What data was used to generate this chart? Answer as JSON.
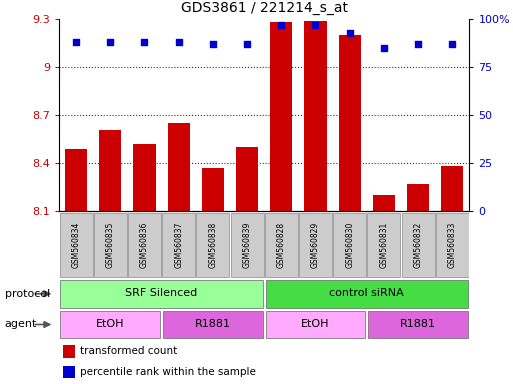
{
  "title": "GDS3861 / 221214_s_at",
  "samples": [
    "GSM560834",
    "GSM560835",
    "GSM560836",
    "GSM560837",
    "GSM560838",
    "GSM560839",
    "GSM560828",
    "GSM560829",
    "GSM560830",
    "GSM560831",
    "GSM560832",
    "GSM560833"
  ],
  "bar_values": [
    8.49,
    8.61,
    8.52,
    8.65,
    8.37,
    8.5,
    9.28,
    9.29,
    9.2,
    8.2,
    8.27,
    8.38
  ],
  "percentile_values": [
    88,
    88,
    88,
    88,
    87,
    87,
    97,
    97,
    93,
    85,
    87,
    87
  ],
  "ymin": 8.1,
  "ymax": 9.3,
  "yticks": [
    8.1,
    8.4,
    8.7,
    9.0,
    9.3
  ],
  "ytick_labels": [
    "8.1",
    "8.4",
    "8.7",
    "9",
    "9.3"
  ],
  "y2min": 0,
  "y2max": 100,
  "y2ticks": [
    0,
    25,
    50,
    75,
    100
  ],
  "y2tick_labels": [
    "0",
    "25",
    "50",
    "75",
    "100%"
  ],
  "bar_color": "#cc0000",
  "dot_color": "#0000cc",
  "protocol_groups": [
    {
      "label": "SRF Silenced",
      "start": 0,
      "end": 6,
      "color": "#99ff99"
    },
    {
      "label": "control siRNA",
      "start": 6,
      "end": 12,
      "color": "#44dd44"
    }
  ],
  "agent_groups": [
    {
      "label": "EtOH",
      "start": 0,
      "end": 3,
      "color": "#ffaaff"
    },
    {
      "label": "R1881",
      "start": 3,
      "end": 6,
      "color": "#dd66dd"
    },
    {
      "label": "EtOH",
      "start": 6,
      "end": 9,
      "color": "#ffaaff"
    },
    {
      "label": "R1881",
      "start": 9,
      "end": 12,
      "color": "#dd66dd"
    }
  ],
  "sample_box_color": "#cccccc",
  "legend_items": [
    {
      "label": "transformed count",
      "color": "#cc0000"
    },
    {
      "label": "percentile rank within the sample",
      "color": "#0000cc"
    }
  ],
  "gridline_color": "#333333",
  "gridline_y": [
    9.0,
    8.7,
    8.4
  ]
}
